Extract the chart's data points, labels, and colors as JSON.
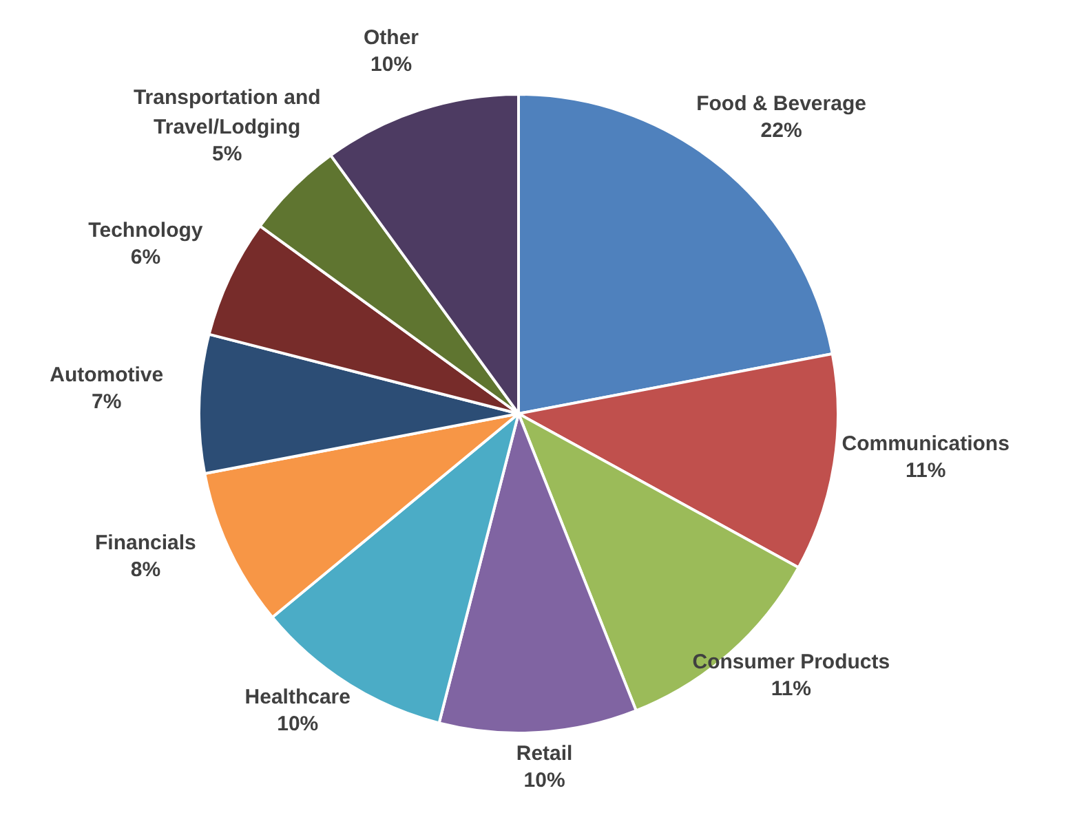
{
  "chart_data": {
    "type": "pie",
    "categories": [
      "Food & Beverage",
      "Communications",
      "Consumer Products",
      "Retail",
      "Healthcare",
      "Financials",
      "Automotive",
      "Technology",
      "Transportation and Travel/Lodging",
      "Other"
    ],
    "values": [
      22,
      11,
      11,
      10,
      10,
      8,
      7,
      6,
      5,
      10
    ],
    "value_labels": [
      "22%",
      "11%",
      "11%",
      "10%",
      "10%",
      "8%",
      "7%",
      "6%",
      "5%",
      "10%"
    ],
    "colors": [
      "#4f81bd",
      "#c0504d",
      "#9bbb59",
      "#8064a2",
      "#4bacc6",
      "#f79646",
      "#2c4d75",
      "#772c2a",
      "#5f7530",
      "#4d3b62"
    ]
  }
}
